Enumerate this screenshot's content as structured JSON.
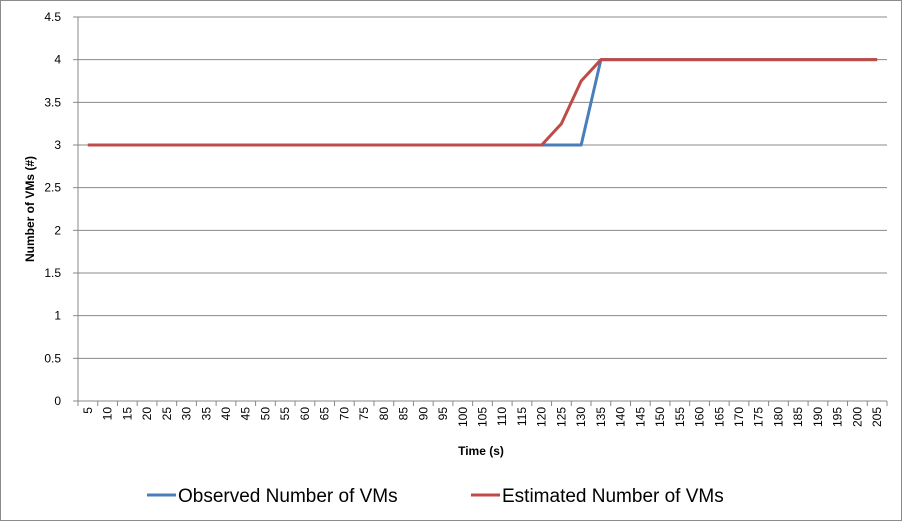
{
  "chart_data": {
    "type": "line",
    "title": "",
    "xlabel": "Time (s)",
    "ylabel": "Number of VMs (#)",
    "ylim": [
      0,
      4.5
    ],
    "yticks": [
      "0",
      "0.5",
      "1",
      "1.5",
      "2",
      "2.5",
      "3",
      "3.5",
      "4",
      "4.5"
    ],
    "grid": true,
    "legend_position": "bottom",
    "x": [
      5,
      10,
      15,
      20,
      25,
      30,
      35,
      40,
      45,
      50,
      55,
      60,
      65,
      70,
      75,
      80,
      85,
      90,
      95,
      100,
      105,
      110,
      115,
      120,
      125,
      130,
      135,
      140,
      145,
      150,
      155,
      160,
      165,
      170,
      175,
      180,
      185,
      190,
      195,
      200,
      205
    ],
    "series": [
      {
        "name": "Observed Number of VMs",
        "color": "#4a7ebb",
        "values": [
          3,
          3,
          3,
          3,
          3,
          3,
          3,
          3,
          3,
          3,
          3,
          3,
          3,
          3,
          3,
          3,
          3,
          3,
          3,
          3,
          3,
          3,
          3,
          3,
          3,
          3,
          4,
          4,
          4,
          4,
          4,
          4,
          4,
          4,
          4,
          4,
          4,
          4,
          4,
          4,
          4
        ]
      },
      {
        "name": "Estimated Number of VMs",
        "color": "#be4b48",
        "values": [
          3,
          3,
          3,
          3,
          3,
          3,
          3,
          3,
          3,
          3,
          3,
          3,
          3,
          3,
          3,
          3,
          3,
          3,
          3,
          3,
          3,
          3,
          3,
          3,
          3.25,
          3.75,
          4,
          4,
          4,
          4,
          4,
          4,
          4,
          4,
          4,
          4,
          4,
          4,
          4,
          4,
          4
        ]
      }
    ]
  }
}
